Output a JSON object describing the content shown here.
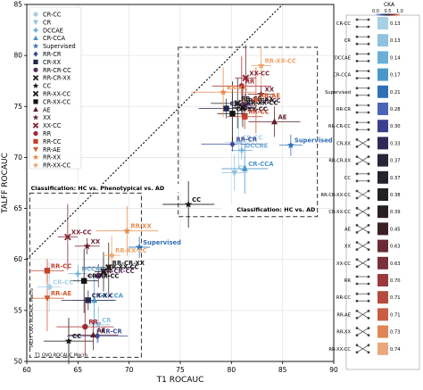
{
  "chart_data": [
    {
      "type": "scatter",
      "title": "",
      "xlabel": "T1 ROCAUC",
      "ylabel": "TALFF ROCAUC",
      "xlim": [
        60,
        90
      ],
      "ylim": [
        50,
        85
      ],
      "x_ticks": [
        "60",
        "65",
        "70",
        "75",
        "80",
        "85",
        "90"
      ],
      "y_ticks": [
        "50",
        "55",
        "60",
        "65",
        "70",
        "75",
        "80",
        "85"
      ],
      "grid": true,
      "diagonal_line": "dotted black y = x",
      "legend_placement": "top-left",
      "annotations": {
        "box_left": "Classification: HC vs. Phenotypical vs. AD",
        "box_right": "Classification: HC vs. AD",
        "axis_note_y": "TALFF OVO ROCAUC Macro",
        "axis_note_x": "T1 OVO ROCAUC Macro"
      },
      "series": [
        {
          "name": "CR-CC",
          "color": "#a9cfe5",
          "marker": "circle",
          "points": [
            {
              "x": 62.2,
              "y": 57.3
            },
            {
              "x": 80.7,
              "y": 71.5
            }
          ]
        },
        {
          "name": "CR",
          "color": "#8fc1e0",
          "marker": "triangle-down",
          "points": [
            {
              "x": 67.0,
              "y": 53.6
            },
            {
              "x": 80.3,
              "y": 68.5
            }
          ]
        },
        {
          "name": "DCCAE",
          "color": "#6aaed6",
          "marker": "plus",
          "points": [
            {
              "x": 65.0,
              "y": 58.6
            },
            {
              "x": 81.0,
              "y": 70.7
            }
          ]
        },
        {
          "name": "CR-CCA",
          "color": "#4a98c9",
          "marker": "triangle-up",
          "points": [
            {
              "x": 66.6,
              "y": 56.0
            },
            {
              "x": 81.3,
              "y": 68.9
            }
          ]
        },
        {
          "name": "Supervised",
          "color": "#2f6fb5",
          "marker": "star",
          "points": [
            {
              "x": 71.0,
              "y": 61.2
            },
            {
              "x": 85.8,
              "y": 71.2
            }
          ]
        },
        {
          "name": "RR-CR",
          "color": "#3d4c97",
          "marker": "diamond",
          "points": [
            {
              "x": 66.9,
              "y": 52.5
            },
            {
              "x": 80.1,
              "y": 71.3
            }
          ]
        },
        {
          "name": "CR-XX",
          "color": "#23254f",
          "marker": "square",
          "points": [
            {
              "x": 66.0,
              "y": 56.0
            },
            {
              "x": 79.5,
              "y": 74.8
            }
          ]
        },
        {
          "name": "RR-CR-CC",
          "color": "#5a2b5f",
          "marker": "circle",
          "points": [
            {
              "x": 67.0,
              "y": 58.4
            },
            {
              "x": 81.3,
              "y": 75.1
            }
          ]
        },
        {
          "name": "RR-CR-XX",
          "color": "#1f1f1f",
          "marker": "x",
          "points": [
            {
              "x": 68.0,
              "y": 59.2
            },
            {
              "x": 80.6,
              "y": 75.3
            }
          ]
        },
        {
          "name": "CC",
          "color": "#111111",
          "marker": "star",
          "points": [
            {
              "x": 64.1,
              "y": 52.0
            },
            {
              "x": 75.8,
              "y": 65.4
            }
          ]
        },
        {
          "name": "RR-XX-CC",
          "color": "#161616",
          "marker": "x",
          "points": [
            {
              "x": 67.5,
              "y": 58.8
            },
            {
              "x": 81.1,
              "y": 74.9
            }
          ]
        },
        {
          "name": "CR-XX-CC",
          "color": "#131313",
          "marker": "square",
          "points": [
            {
              "x": 65.6,
              "y": 57.9
            },
            {
              "x": 80.1,
              "y": 74.3
            }
          ]
        },
        {
          "name": "AE",
          "color": "#5e1e2a",
          "marker": "triangle-up",
          "points": [
            {
              "x": 66.5,
              "y": 52.6
            },
            {
              "x": 84.2,
              "y": 73.5
            }
          ]
        },
        {
          "name": "XX",
          "color": "#6b1f2e",
          "marker": "star",
          "points": [
            {
              "x": 65.9,
              "y": 61.3
            },
            {
              "x": 82.9,
              "y": 76.2
            }
          ]
        },
        {
          "name": "XX-CC",
          "color": "#7e2231",
          "marker": "x",
          "points": [
            {
              "x": 64.0,
              "y": 62.2
            },
            {
              "x": 81.4,
              "y": 77.8
            }
          ]
        },
        {
          "name": "RR",
          "color": "#a4262f",
          "marker": "circle",
          "points": [
            {
              "x": 65.7,
              "y": 53.4
            },
            {
              "x": 81.0,
              "y": 77.0
            }
          ]
        },
        {
          "name": "RR-CC",
          "color": "#c2412a",
          "marker": "square",
          "points": [
            {
              "x": 62.0,
              "y": 58.9
            },
            {
              "x": 81.3,
              "y": 74.0
            }
          ]
        },
        {
          "name": "RR-AE",
          "color": "#d4582b",
          "marker": "triangle-down",
          "points": [
            {
              "x": 62.0,
              "y": 56.2
            },
            {
              "x": 82.4,
              "y": 75.6
            }
          ]
        },
        {
          "name": "RR-XX",
          "color": "#ea8a4b",
          "marker": "star",
          "points": [
            {
              "x": 69.8,
              "y": 62.8
            },
            {
              "x": 79.2,
              "y": 76.4
            }
          ]
        },
        {
          "name": "RR-XX-CC",
          "color": "#f0a26b",
          "marker": "star",
          "points": [
            {
              "x": 68.3,
              "y": 60.4
            },
            {
              "x": 82.9,
              "y": 79.0
            }
          ]
        }
      ]
    },
    {
      "type": "heatmap",
      "title": "CKA",
      "colorbar_ticks": [
        "0.0",
        "0.5",
        "1.0"
      ],
      "rows": [
        {
          "label": "CR-CC",
          "value": 0.13,
          "value_label": "0.13",
          "color": "#a9cfe5"
        },
        {
          "label": "CR",
          "value": 0.13,
          "value_label": "0.13",
          "color": "#8fc1e0"
        },
        {
          "label": "DCCAE",
          "value": 0.14,
          "value_label": "0.14",
          "color": "#6aaed6"
        },
        {
          "label": "CR-CCA",
          "value": 0.17,
          "value_label": "0.17",
          "color": "#4a98c9"
        },
        {
          "label": "Supervised",
          "value": 0.21,
          "value_label": "0.21",
          "color": "#2f6fb5"
        },
        {
          "label": "RR-CR",
          "value": 0.28,
          "value_label": "0.28",
          "color": "#4b64b8"
        },
        {
          "label": "RR-CR-CC",
          "value": 0.3,
          "value_label": "0.30",
          "color": "#3b3f8f"
        },
        {
          "label": "CR-XX",
          "value": 0.33,
          "value_label": "0.33",
          "color": "#2f2a55"
        },
        {
          "label": "RR-CR-XX",
          "value": 0.37,
          "value_label": "0.37",
          "color": "#2a2438"
        },
        {
          "label": "CC",
          "value": 0.37,
          "value_label": "0.37",
          "color": "#25202b"
        },
        {
          "label": "RR-CR-XX-CC",
          "value": 0.38,
          "value_label": "0.38",
          "color": "#241f25"
        },
        {
          "label": "CR-XX-CC",
          "value": 0.39,
          "value_label": "0.39",
          "color": "#282022"
        },
        {
          "label": "AE",
          "value": 0.45,
          "value_label": "0.45",
          "color": "#3a1f24"
        },
        {
          "label": "XX",
          "value": 0.63,
          "value_label": "0.63",
          "color": "#6b2a36"
        },
        {
          "label": "XX-CC",
          "value": 0.63,
          "value_label": "0.63",
          "color": "#7a2f3a"
        },
        {
          "label": "RR",
          "value": 0.7,
          "value_label": "0.70",
          "color": "#9a3a3e"
        },
        {
          "label": "RR-CC",
          "value": 0.71,
          "value_label": "0.71",
          "color": "#b54a3f"
        },
        {
          "label": "RR-AE",
          "value": 0.71,
          "value_label": "0.71",
          "color": "#c85e42"
        },
        {
          "label": "RR-XX",
          "value": 0.73,
          "value_label": "0.73",
          "color": "#de8656"
        },
        {
          "label": "RR-XX-CC",
          "value": 0.74,
          "value_label": "0.74",
          "color": "#eaa77a"
        }
      ]
    }
  ]
}
